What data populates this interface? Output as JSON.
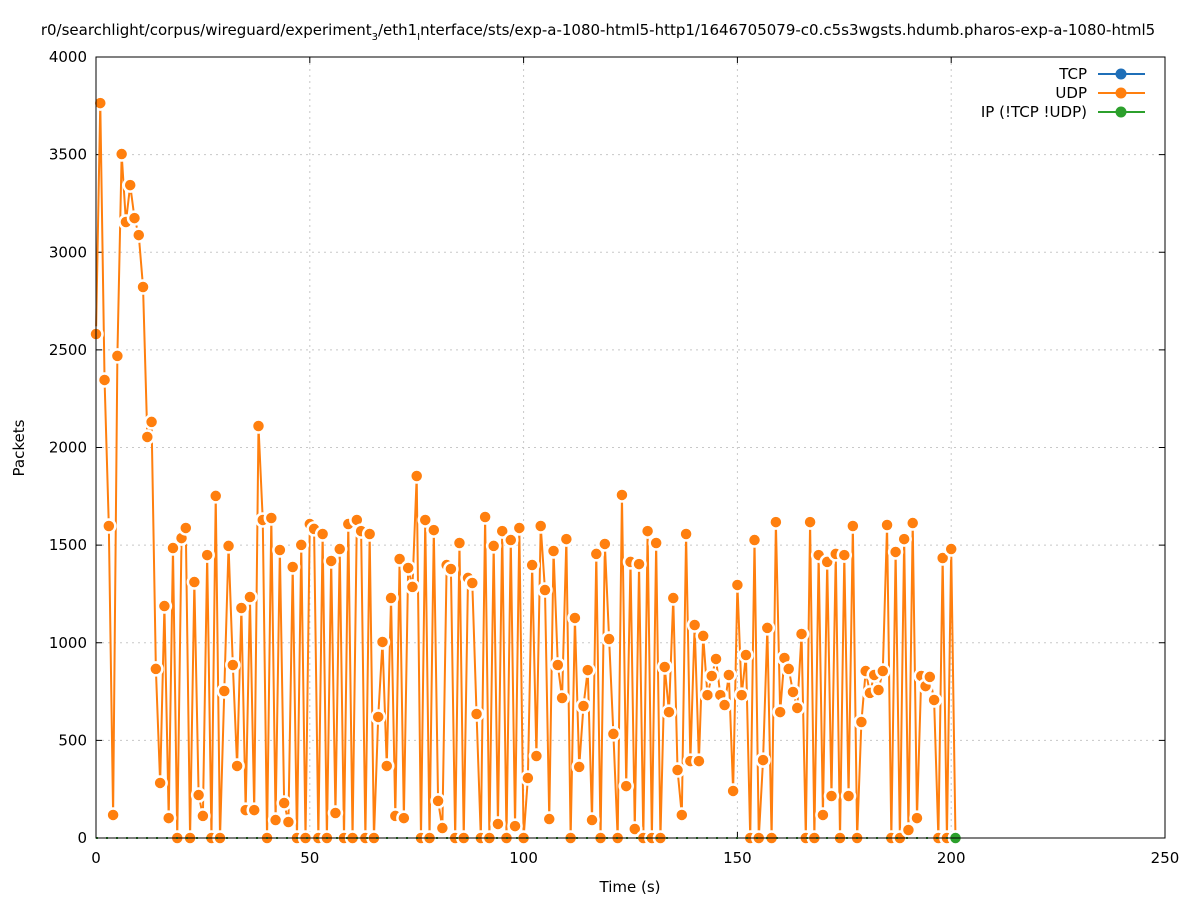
{
  "chart_data": {
    "type": "line",
    "title_parts": [
      "r0/searchlight/corpus/wireguard/experiment",
      "3",
      "/eth1",
      "I",
      "nterface/sts/exp-a-1080-html5-http1/1646705079-c0.c5s3wgsts.hdumb.pharos-exp-a-1080-html5"
    ],
    "xlabel": "Time (s)",
    "ylabel": "Packets",
    "xlim": [
      0,
      250
    ],
    "ylim": [
      0,
      4000
    ],
    "xticks": [
      0,
      50,
      100,
      150,
      200,
      250
    ],
    "yticks": [
      0,
      500,
      1000,
      1500,
      2000,
      2500,
      3000,
      3500,
      4000
    ],
    "grid": true,
    "legend_position": "top-right",
    "series": [
      {
        "name": "TCP",
        "color": "#1f6fb8",
        "x": [],
        "values": []
      },
      {
        "name": "UDP",
        "color": "#ff7f0e",
        "x_start": 0,
        "values": [
          2581,
          3764,
          2346,
          1598,
          118,
          2469,
          3503,
          3155,
          3344,
          3175,
          3088,
          2822,
          2054,
          2131,
          866,
          282,
          1188,
          102,
          1485,
          0,
          1536,
          1588,
          0,
          1311,
          220,
          113,
          1449,
          0,
          1752,
          0,
          753,
          1496,
          886,
          369,
          1178,
          143,
          1234,
          143,
          2110,
          1629,
          0,
          1639,
          92,
          1475,
          179,
          82,
          1388,
          0,
          1501,
          0,
          1608,
          1583,
          0,
          1557,
          0,
          1419,
          128,
          1480,
          0,
          1608,
          0,
          1629,
          1572,
          0,
          1557,
          0,
          620,
          1004,
          369,
          1229,
          113,
          1429,
          102,
          1383,
          1286,
          1854,
          0,
          1629,
          0,
          1577,
          190,
          51,
          1398,
          1378,
          0,
          1511,
          0,
          1332,
          1306,
          635,
          0,
          1644,
          0,
          1496,
          72,
          1572,
          0,
          1526,
          61,
          1588,
          0,
          307,
          1398,
          420,
          1598,
          1270,
          97,
          1470,
          886,
          717,
          1531,
          0,
          1127,
          364,
          676,
          860,
          92,
          1455,
          0,
          1506,
          1019,
          533,
          0,
          1757,
          266,
          1414,
          46,
          1403,
          0,
          1572,
          0,
          1511,
          0,
          876,
          645,
          1229,
          348,
          118,
          1557,
          394,
          1091,
          394,
          1035,
          732,
          830,
          917,
          732,
          681,
          835,
          241,
          1296,
          732,
          937,
          0,
          1526,
          0,
          399,
          1076,
          0,
          1618,
          645,
          922,
          866,
          748,
          666,
          1045,
          0,
          1618,
          0,
          1449,
          118,
          1414,
          215,
          1455,
          0,
          1449,
          215,
          1598,
          0,
          594,
          855,
          743,
          835,
          758,
          855,
          1603,
          0,
          1465,
          0,
          1531,
          41,
          1613,
          102,
          830,
          778,
          825,
          707,
          0,
          1434,
          0,
          1480,
          0
        ]
      },
      {
        "name": "IP (!TCP  !UDP)",
        "color": "#2ca02c",
        "x": [
          201
        ],
        "values": [
          0
        ]
      }
    ]
  }
}
